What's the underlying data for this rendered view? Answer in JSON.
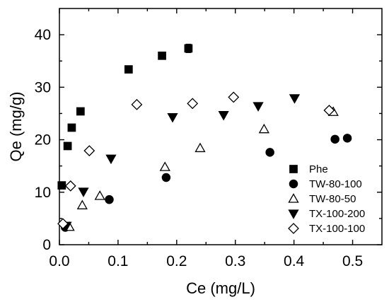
{
  "chart_data": {
    "type": "scatter",
    "xlabel": "Ce (mg/L)",
    "ylabel": "Qe (mg/g)",
    "xlim": [
      0.0,
      0.55
    ],
    "ylim": [
      0,
      45
    ],
    "x_ticks": [
      0.0,
      0.1,
      0.2,
      0.3,
      0.4,
      0.5
    ],
    "x_tick_labels": [
      "0.0",
      "0.1",
      "0.2",
      "0.3",
      "0.4",
      "0.5"
    ],
    "y_ticks": [
      0,
      10,
      20,
      30,
      40
    ],
    "y_tick_labels": [
      "0",
      "10",
      "20",
      "30",
      "40"
    ],
    "grid": false,
    "legend_position": "bottom-right",
    "series": [
      {
        "name": "Phe",
        "marker": "square-filled",
        "x": [
          0.004,
          0.014,
          0.021,
          0.036,
          0.118,
          0.175,
          0.22
        ],
        "y": [
          11.3,
          18.8,
          22.3,
          25.4,
          33.4,
          36.0,
          37.4
        ],
        "error": [
          0,
          0,
          0,
          0,
          0,
          0,
          0.8
        ]
      },
      {
        "name": "TW-80-100",
        "marker": "circle-filled",
        "x": [
          0.01,
          0.085,
          0.182,
          0.359,
          0.47,
          0.491
        ],
        "y": [
          3.3,
          8.6,
          12.8,
          17.6,
          20.1,
          20.3
        ],
        "error": [
          0,
          0,
          0,
          0,
          0,
          0
        ]
      },
      {
        "name": "TW-80-50",
        "marker": "triangle-up-open",
        "x": [
          0.017,
          0.039,
          0.069,
          0.18,
          0.24,
          0.349,
          0.467
        ],
        "y": [
          3.4,
          7.5,
          9.3,
          14.8,
          18.4,
          22.0,
          25.3
        ],
        "error": [
          0,
          0,
          0,
          0,
          0,
          0,
          0
        ]
      },
      {
        "name": "TX-100-200",
        "marker": "triangle-down-filled",
        "x": [
          0.012,
          0.041,
          0.088,
          0.193,
          0.28,
          0.339,
          0.401
        ],
        "y": [
          3.6,
          10.1,
          16.4,
          24.3,
          24.7,
          26.4,
          27.9
        ],
        "error": [
          0,
          0,
          0,
          0,
          0,
          0,
          0
        ]
      },
      {
        "name": "TX-100-100",
        "marker": "diamond-open",
        "x": [
          0.006,
          0.019,
          0.051,
          0.132,
          0.227,
          0.297,
          0.46
        ],
        "y": [
          4.0,
          11.2,
          17.9,
          26.7,
          26.9,
          28.1,
          25.6
        ],
        "error": [
          0,
          0,
          0,
          0,
          0,
          0,
          0
        ]
      }
    ]
  }
}
